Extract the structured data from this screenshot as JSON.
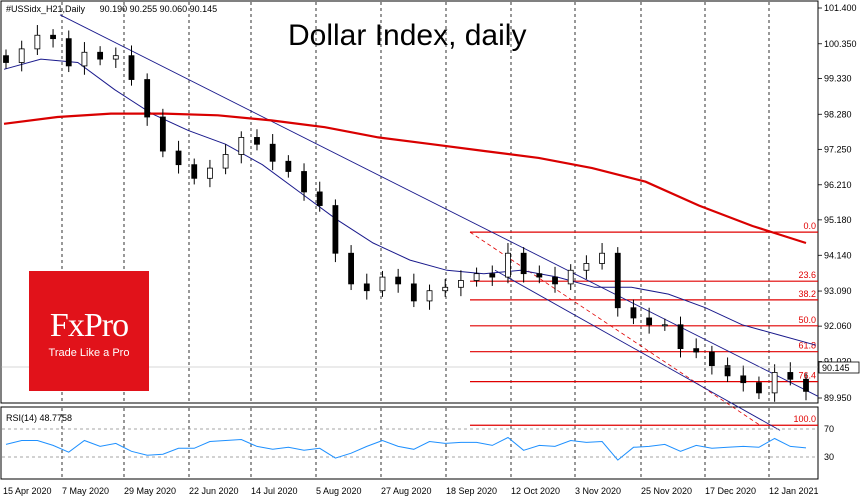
{
  "header": {
    "symbol_line": "#USSidx_H21,Daily",
    "ohlc": "90.190 90.255 90.060 90.145"
  },
  "title": "Dollar Index, daily",
  "logo": {
    "brand": "FxPro",
    "tagline": "Trade Like a Pro"
  },
  "rsi": {
    "label": "RSI(14) 48.7758",
    "levels": [
      70,
      30
    ]
  },
  "colors": {
    "price": "#000000",
    "ma_fast": "#1a1a8c",
    "ma_slow": "#d90000",
    "fib": "#e00000",
    "rsi": "#1e90ff",
    "logo_bg": "#e1121a"
  },
  "chart_data": {
    "type": "candlestick",
    "x_tick_labels": [
      "15 Apr 2020",
      "7 May 2020",
      "29 May 2020",
      "22 Jun 2020",
      "14 Jul 2020",
      "5 Aug 2020",
      "27 Aug 2020",
      "18 Sep 2020",
      "12 Oct 2020",
      "3 Nov 2020",
      "25 Nov 2020",
      "17 Dec 2020",
      "12 Jan 2021"
    ],
    "y_tick_labels": [
      "101.400",
      "100.350",
      "99.330",
      "98.280",
      "97.250",
      "96.210",
      "95.180",
      "94.140",
      "93.090",
      "92.060",
      "91.020",
      "89.950"
    ],
    "y_range": [
      89.95,
      101.4
    ],
    "current_price": "90.145",
    "close_series": [
      99.8,
      100.2,
      100.6,
      100.5,
      99.7,
      100.1,
      99.9,
      100.0,
      99.3,
      98.2,
      97.2,
      96.8,
      96.4,
      96.7,
      97.1,
      97.6,
      97.4,
      96.9,
      96.6,
      96.0,
      95.6,
      94.2,
      93.3,
      93.1,
      93.5,
      93.3,
      92.8,
      93.1,
      93.2,
      93.4,
      93.6,
      93.5,
      94.2,
      93.6,
      93.5,
      93.3,
      93.7,
      93.9,
      94.2,
      92.6,
      92.3,
      92.1,
      92.1,
      91.4,
      91.3,
      90.9,
      90.6,
      90.4,
      90.1,
      90.7,
      90.5,
      90.145
    ],
    "series": [
      {
        "name": "MA fast",
        "values": [
          99.6,
          99.9,
          99.8,
          99.0,
          98.3,
          97.8,
          97.4,
          96.8,
          96.0,
          95.2,
          94.5,
          94.0,
          93.7,
          93.6,
          93.7,
          93.5,
          93.2,
          93.2,
          93.0,
          92.6,
          92.1,
          91.8,
          91.5
        ]
      },
      {
        "name": "MA slow",
        "values": [
          98.0,
          98.2,
          98.3,
          98.3,
          98.25,
          98.1,
          97.9,
          97.6,
          97.4,
          97.2,
          97.0,
          96.7,
          96.3,
          95.6,
          95.0,
          94.5
        ]
      }
    ],
    "fib_levels": [
      {
        "label": "0.0",
        "price": 94.82
      },
      {
        "label": "23.6",
        "price": 93.38
      },
      {
        "label": "38.2",
        "price": 92.83
      },
      {
        "label": "50.0",
        "price": 92.07
      },
      {
        "label": "61.8",
        "price": 91.31
      },
      {
        "label": "76.4",
        "price": 90.43
      },
      {
        "label": "100.0",
        "price": 89.15
      }
    ],
    "rsi_tick_labels": [
      "70",
      "30"
    ]
  }
}
